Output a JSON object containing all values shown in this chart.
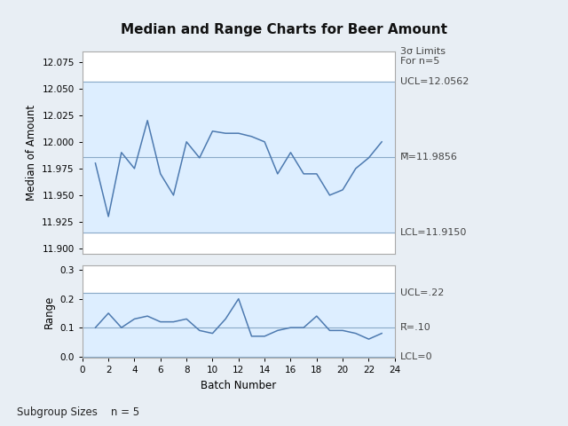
{
  "title": "Median and Range Charts for Beer Amount",
  "xlabel": "Batch Number",
  "ylabel_top": "Median of Amount",
  "ylabel_bottom": "Range",
  "subgroup_text": "Subgroup Sizes    n = 5",
  "batch_numbers": [
    1,
    2,
    3,
    4,
    5,
    6,
    7,
    8,
    9,
    10,
    11,
    12,
    13,
    14,
    15,
    16,
    17,
    18,
    19,
    20,
    21,
    22,
    23
  ],
  "median_values": [
    11.98,
    11.93,
    11.99,
    11.975,
    12.02,
    11.97,
    11.95,
    12.0,
    11.985,
    12.01,
    12.008,
    12.008,
    12.005,
    12.0,
    11.97,
    11.99,
    11.97,
    11.97,
    11.95,
    11.955,
    11.975,
    11.985,
    12.0
  ],
  "range_values": [
    0.1,
    0.15,
    0.1,
    0.13,
    0.14,
    0.12,
    0.12,
    0.13,
    0.09,
    0.08,
    0.13,
    0.2,
    0.07,
    0.07,
    0.09,
    0.1,
    0.1,
    0.14,
    0.09,
    0.09,
    0.08,
    0.06,
    0.08
  ],
  "median_ucl": 12.0562,
  "median_cl": 11.9856,
  "median_lcl": 11.915,
  "range_ucl": 0.22,
  "range_cl": 0.1,
  "range_lcl": 0,
  "fig_bg": "#e8eef4",
  "plot_bg": "#ffffff",
  "band_color": "#ddeeff",
  "line_color": "#4d7ab0",
  "cl_color": "#8aaac8",
  "anno_color": "#444444",
  "anno_fontsize": 8,
  "title_fontsize": 11
}
